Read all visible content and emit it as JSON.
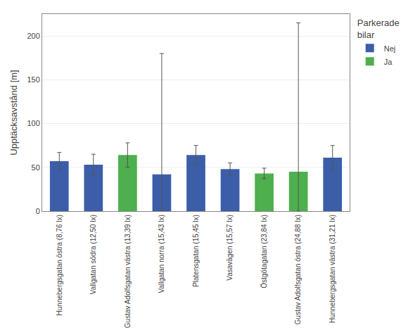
{
  "chart_data": {
    "type": "bar",
    "categories": [
      "Hunnebergsgatan östra (8,76 lx)",
      "Vallgatan södra (12,50 lx)",
      "Gustav Adolfsgatan västra (13,39 lx)",
      "Vallgatan norra (15,43 lx)",
      "Platensgatan (15,45 lx)",
      "Vasavägen (15,57 lx)",
      "Östgötagatan (23,84 lx)",
      "Gustav Adolfsgatan östra (24,88 lx)",
      "Hunnebergsgatan västra (31,21 lx)"
    ],
    "series": [
      {
        "name": "Nej",
        "color": "#3C5EA8",
        "values": [
          57,
          53,
          null,
          42,
          64,
          48,
          null,
          null,
          61
        ],
        "error_pos": [
          10,
          12,
          null,
          138,
          11,
          7,
          null,
          null,
          14
        ],
        "error_neg": [
          10,
          12,
          null,
          42,
          11,
          7,
          null,
          null,
          14
        ]
      },
      {
        "name": "Ja",
        "color": "#4DAF4D",
        "values": [
          null,
          null,
          64,
          null,
          null,
          null,
          43,
          45,
          null
        ],
        "error_pos": [
          null,
          null,
          14,
          null,
          null,
          null,
          6,
          170,
          null
        ],
        "error_neg": [
          null,
          null,
          14,
          null,
          null,
          null,
          6,
          45,
          null
        ]
      }
    ],
    "ylabel": "Upptäcksavstånd [m]",
    "legend_title": "Parkerade\nbilar",
    "legend": "upper right",
    "ylim": [
      0,
      225
    ],
    "yticks": [
      0,
      50,
      100,
      150,
      200
    ],
    "grid": true
  }
}
